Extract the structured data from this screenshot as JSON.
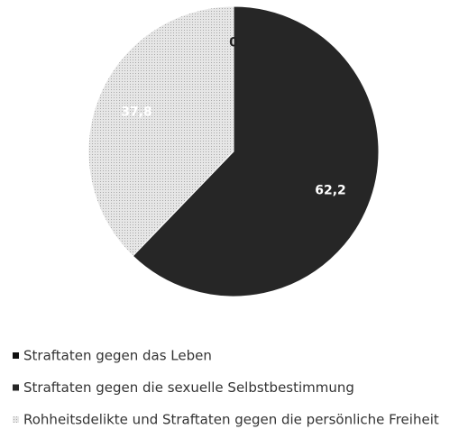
{
  "chart_data": {
    "type": "pie",
    "categories": [
      "Straftaten gegen das Leben",
      "Straftaten gegen die sexuelle Selbstbestimmung",
      "Rohheitsdelikte und Straftaten gegen die persönliche Freiheit"
    ],
    "values": [
      0,
      62.2,
      37.8
    ],
    "value_labels": [
      "0",
      "62,2",
      "37,8"
    ],
    "colors": [
      "#111111",
      "#262626",
      "#dcdcdc"
    ],
    "label_colors": [
      "#222222",
      "#ffffff",
      "#ffffff"
    ],
    "legend": "bottom"
  }
}
